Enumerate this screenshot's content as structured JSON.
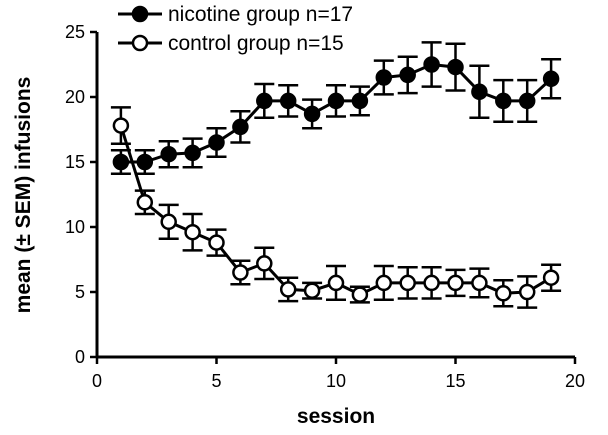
{
  "chart_data": {
    "type": "line",
    "xlabel": "session",
    "ylabel": "mean (± SEM) infusions",
    "xlim": [
      0,
      20
    ],
    "ylim": [
      0,
      25
    ],
    "xticks": [
      0,
      5,
      10,
      15,
      20
    ],
    "yticks": [
      0,
      5,
      10,
      15,
      20,
      25
    ],
    "grid": false,
    "legend_position": "top-left",
    "x": [
      1,
      2,
      3,
      4,
      5,
      6,
      7,
      8,
      9,
      10,
      11,
      12,
      13,
      14,
      15,
      16,
      17,
      18,
      19
    ],
    "series": [
      {
        "name": "nicotine group n=17",
        "marker": "filled-circle",
        "values": [
          15.0,
          15.0,
          15.6,
          15.7,
          16.5,
          17.7,
          19.7,
          19.7,
          18.7,
          19.7,
          19.7,
          21.5,
          21.7,
          22.5,
          22.3,
          20.4,
          19.7,
          19.7,
          21.4
        ],
        "sem": [
          0.9,
          0.9,
          1.0,
          1.1,
          1.1,
          1.2,
          1.3,
          1.2,
          1.1,
          1.2,
          1.1,
          1.3,
          1.4,
          1.7,
          1.8,
          2.0,
          1.6,
          1.6,
          1.5
        ]
      },
      {
        "name": "control group n=15",
        "marker": "open-circle",
        "values": [
          17.8,
          11.9,
          10.4,
          9.6,
          8.8,
          6.5,
          7.2,
          5.2,
          5.1,
          5.7,
          4.8,
          5.7,
          5.7,
          5.7,
          5.7,
          5.7,
          4.9,
          5.0,
          6.1
        ],
        "sem": [
          1.4,
          0.9,
          1.3,
          1.4,
          1.0,
          0.9,
          1.2,
          0.9,
          0.6,
          1.3,
          0.6,
          1.3,
          1.2,
          1.2,
          1.0,
          1.1,
          1.0,
          1.2,
          1.0
        ]
      }
    ]
  },
  "colors": {
    "axis": "#000000",
    "nicotine_fill": "#000000",
    "control_fill": "#ffffff"
  }
}
